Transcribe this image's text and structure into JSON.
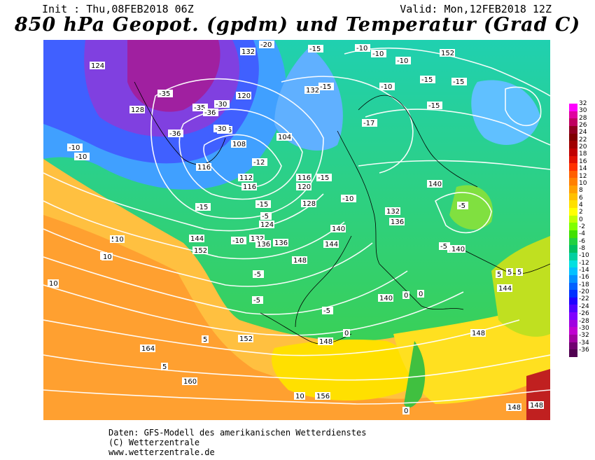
{
  "header": {
    "init": "Init : Thu,08FEB2018 06Z",
    "valid": "Valid: Mon,12FEB2018 12Z",
    "title": "850 hPa Geopot. (gpdm) und Temperatur (Grad C)"
  },
  "map": {
    "geopotential_labels": [
      "124",
      "128",
      "132",
      "132",
      "152",
      "120",
      "116",
      "116",
      "108",
      "104",
      "112",
      "116",
      "120",
      "116",
      "128",
      "124",
      "140",
      "148",
      "152",
      "144",
      "136",
      "132",
      "136",
      "140",
      "140",
      "132",
      "136",
      "144",
      "148",
      "140",
      "140",
      "144",
      "148",
      "152",
      "164",
      "160",
      "156",
      "148",
      "148"
    ],
    "temperature_labels": [
      "-35",
      "-35",
      "-36",
      "-36",
      "-30",
      "-30",
      "-20",
      "-15",
      "-15",
      "-10",
      "-10",
      "-10",
      "-10",
      "-10",
      "-10",
      "-15",
      "-15",
      "-15",
      "-17",
      "-12",
      "-15",
      "-10",
      "-15",
      "-15",
      "-5",
      "-5",
      "-10",
      "-5",
      "-5",
      "-5",
      "-5",
      "5",
      "5",
      "5",
      "0",
      "0",
      "5",
      "5",
      "5",
      "0",
      "10",
      "10",
      "10",
      "10",
      "5",
      "5",
      "0"
    ]
  },
  "colorbar": {
    "ticks": [
      "32",
      "30",
      "28",
      "26",
      "24",
      "22",
      "20",
      "18",
      "16",
      "14",
      "12",
      "10",
      "8",
      "6",
      "4",
      "2",
      "0",
      "-2",
      "-4",
      "-6",
      "-8",
      "-10",
      "-12",
      "-14",
      "-16",
      "-18",
      "-20",
      "-22",
      "-24",
      "-26",
      "-28",
      "-30",
      "-32",
      "-34",
      "-36"
    ],
    "colors": [
      "#ff00ff",
      "#e000a0",
      "#c00060",
      "#900020",
      "#800000",
      "#a00000",
      "#c00000",
      "#e01000",
      "#ff3000",
      "#ff6000",
      "#ff8000",
      "#ffa000",
      "#ffc000",
      "#ffe000",
      "#ffff00",
      "#c0ff00",
      "#80ff00",
      "#40e000",
      "#20d040",
      "#00c060",
      "#00d0a0",
      "#00e0e0",
      "#00c0ff",
      "#0090ff",
      "#0060ff",
      "#0030ff",
      "#2000ff",
      "#5000ff",
      "#8000ff",
      "#a000e0",
      "#c000d0",
      "#a000a0",
      "#700070",
      "#500050"
    ]
  },
  "footer": {
    "line1": "Daten: GFS-Modell des amerikanischen Wetterdienstes",
    "line2": "(C) Wetterzentrale",
    "line3": "www.wetterzentrale.de"
  }
}
